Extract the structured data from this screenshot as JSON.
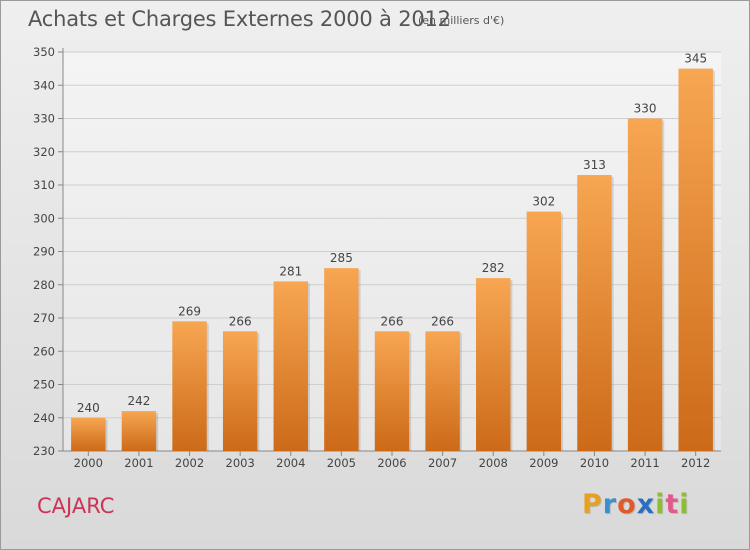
{
  "title": "Achats et Charges Externes 2000 à 2012",
  "subtitle": "(en milliers d'€)",
  "commune": "CAJARC",
  "logo": {
    "text": "Proxiti",
    "letters": [
      {
        "ch": "P",
        "color": "#e8a020"
      },
      {
        "ch": "r",
        "color": "#3a8fd0"
      },
      {
        "ch": "o",
        "color": "#e05a2a"
      },
      {
        "ch": "x",
        "color": "#2a6fc0"
      },
      {
        "ch": "i",
        "color": "#8cbf2a"
      },
      {
        "ch": "t",
        "color": "#e05a8a"
      },
      {
        "ch": "i",
        "color": "#8cbf2a"
      }
    ]
  },
  "colors": {
    "bar_top": "#f7a652",
    "bar_bottom": "#cc6a18",
    "grid": "#cfcfcf",
    "axis": "#888888",
    "text": "#444444"
  },
  "chart_data": {
    "type": "bar",
    "categories": [
      "2000",
      "2001",
      "2002",
      "2003",
      "2004",
      "2005",
      "2006",
      "2007",
      "2008",
      "2009",
      "2010",
      "2011",
      "2012"
    ],
    "values": [
      240,
      242,
      269,
      266,
      281,
      285,
      266,
      266,
      282,
      302,
      313,
      330,
      345
    ],
    "data_labels": [
      "240",
      "242",
      "269",
      "266",
      "281",
      "285",
      "266",
      "266",
      "282",
      "302",
      "313",
      "330",
      "345"
    ],
    "yticks": [
      "230",
      "240",
      "250",
      "260",
      "270",
      "280",
      "290",
      "300",
      "310",
      "320",
      "330",
      "340",
      "350"
    ],
    "ylim": [
      230,
      350
    ],
    "grid": true,
    "xlabel": "",
    "ylabel": ""
  }
}
